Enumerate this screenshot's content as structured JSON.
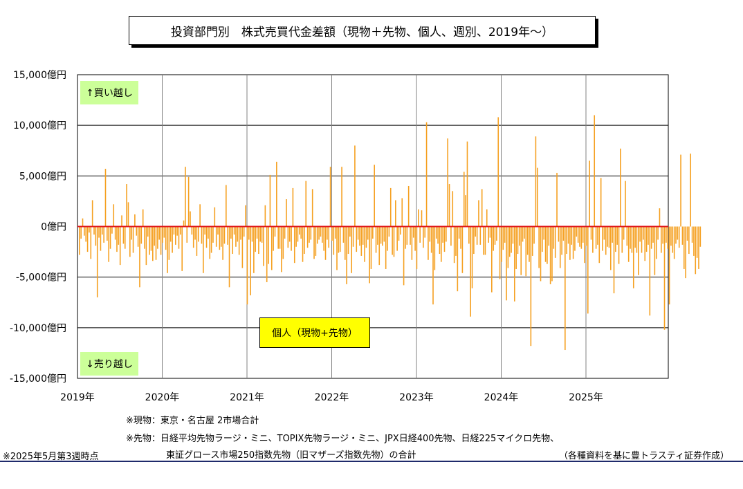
{
  "title": "投資部門別　株式売買代金差額（現物＋先物、個人、週別、2019年～）",
  "notes": {
    "genbutsu": "※現物：東京・名古屋 2市場合計",
    "sakimono1": "※先物：日経平均先物ラージ・ミニ、TOPIX先物ラージ・ミニ、JPX日経400先物、日経225マイクロ先物、",
    "sakimono2": "東証グロース市場250指数先物（旧マザーズ指数先物）の合計",
    "asof": "※2025年5月第3週時点",
    "source": "（各種資料を基に豊トラスティ証券作成）"
  },
  "colors": {
    "bar": "#f5a020",
    "zero_line": "#e0181b",
    "grid": "#000000",
    "callout_green": "#ccff99",
    "legend_bg": "#ffff00"
  },
  "chart_data": {
    "type": "bar",
    "title": "投資部門別　株式売買代金差額（現物＋先物、個人、週別、2019年～）",
    "y_unit": "億円",
    "ylim": [
      -15000,
      15000
    ],
    "y_ticks": [
      15000,
      10000,
      5000,
      0,
      -5000,
      -10000,
      -15000
    ],
    "y_tick_labels": [
      "15,000億円",
      "10,000億円",
      "5,000億円",
      "0億円",
      "-5,000億円",
      "-10,000億円",
      "-15,000億円"
    ],
    "x_tick_labels": [
      "2019年",
      "2020年",
      "2021年",
      "2022年",
      "2023年",
      "2024年",
      "2025年"
    ],
    "x_range_years": [
      2019,
      2026
    ],
    "grid": true,
    "annotations": {
      "buy": "↑買い越し",
      "sell": "↓売り越し"
    },
    "series": [
      {
        "name": "個人（現物+先物）",
        "start": "2019-01 week1",
        "frequency": "weekly",
        "values": [
          -2800,
          -1200,
          800,
          -900,
          -1500,
          -2500,
          -600,
          -3200,
          2600,
          -800,
          -1900,
          -7000,
          -1100,
          -2400,
          -800,
          -1600,
          5700,
          -1400,
          -3500,
          -2200,
          -700,
          2200,
          -1300,
          -2500,
          -1800,
          -3800,
          1100,
          -1700,
          -2200,
          4200,
          2400,
          -3000,
          -1300,
          -2600,
          1200,
          -900,
          -2000,
          -6000,
          -1700,
          1700,
          -2200,
          -3800,
          -1000,
          -2800,
          -2400,
          -3400,
          -1900,
          -3300,
          -2200,
          -1300,
          -2800,
          -1600,
          -1100,
          -2300,
          -4600,
          -3300,
          -1500,
          -2600,
          -800,
          -1800,
          -900,
          -2200,
          -800,
          -4400,
          600,
          5900,
          -1600,
          4900,
          1500,
          -800,
          -2100,
          -1300,
          -2900,
          -1500,
          2200,
          -1700,
          -4600,
          -800,
          -2100,
          -1200,
          -3200,
          -2600,
          -1600,
          1900,
          -2000,
          -800,
          -2300,
          -2000,
          -3300,
          -1700,
          4100,
          -1800,
          -6000,
          -1200,
          -2700,
          -800,
          -2000,
          -1500,
          -2800,
          -1300,
          -4100,
          -1000,
          2100,
          -7700,
          -1300,
          -6800,
          -1500,
          -4600,
          -2500,
          -1200,
          -2700,
          -1500,
          -1600,
          -3900,
          2100,
          -5500,
          -3700,
          5100,
          -4300,
          -2400,
          -1000,
          6400,
          -2200,
          -2200,
          -4500,
          -3200,
          -1200,
          2700,
          -2100,
          -1500,
          -2400,
          3800,
          -3600,
          -2000,
          -1500,
          -800,
          -1200,
          -3500,
          -2700,
          4500,
          -2100,
          -1600,
          -1300,
          3700,
          -3200,
          -2900,
          -1700,
          -1300,
          -1000,
          -1600,
          -2400,
          -3300,
          -1300,
          -2100,
          5900,
          -1400,
          -2800,
          -1200,
          -4300,
          -2600,
          -2500,
          5900,
          -1600,
          -3300,
          -5700,
          -2700,
          -1000,
          -4600,
          -2000,
          8000,
          -2500,
          -1300,
          -1900,
          -2900,
          -1800,
          -3500,
          -2100,
          -1300,
          -5600,
          -4200,
          -1200,
          6100,
          -2600,
          -1800,
          -3800,
          -1700,
          -1900,
          -1500,
          -4200,
          -2400,
          -1000,
          3800,
          -2800,
          -3000,
          2600,
          -2400,
          -1400,
          -800,
          2800,
          -5800,
          -2200,
          -1800,
          4000,
          -1800,
          -3300,
          -1100,
          -2400,
          -4200,
          1700,
          -1600,
          1600,
          -2100,
          -1100,
          10300,
          -3300,
          -1500,
          -2600,
          -7700,
          -4300,
          -1200,
          -1700,
          -2700,
          -3500,
          -1600,
          -2500,
          -1500,
          8700,
          4200,
          -1900,
          3500,
          -3600,
          -2900,
          -6400,
          -1200,
          -2200,
          -4600,
          5400,
          3100,
          8400,
          -1700,
          -8900,
          -6100,
          -2700,
          -1000,
          -1800,
          2600,
          -1800,
          3700,
          -2800,
          -2800,
          1700,
          -1600,
          -1100,
          -6500,
          -2400,
          -1800,
          -1400,
          10800,
          -5200,
          -3500,
          -2300,
          -1600,
          -7300,
          -4100,
          -3000,
          -2600,
          -1700,
          -7400,
          -4200,
          -2700,
          -1900,
          -4800,
          -1500,
          -1200,
          -4900,
          -2800,
          -3500,
          -11800,
          -2900,
          -1700,
          8900,
          5800,
          -4100,
          -5400,
          -2500,
          -1300,
          -3500,
          -3700,
          -1900,
          -5700,
          -5400,
          -2200,
          -3100,
          5300,
          -1500,
          -4100,
          -2800,
          -1400,
          -12200,
          -2700,
          -1700,
          -3300,
          -1800,
          -3200,
          -2400,
          -1000,
          -1600,
          -2000,
          -2200,
          -1600,
          -3600,
          -1900,
          -8600,
          6500,
          -1300,
          -2600,
          11000,
          -2200,
          -1800,
          -3600,
          4800,
          -2400,
          -1300,
          -2800,
          -2000,
          -2100,
          -4300,
          -1600,
          -6600,
          -2500,
          -1800,
          -3700,
          7700,
          -2600,
          -1300,
          4500,
          -1900,
          -3500,
          -2200,
          -2600,
          -6100,
          -2100,
          -2600,
          -4800,
          -1500,
          -2600,
          -1300,
          -3400,
          -2500,
          -1800,
          -8800,
          -2200,
          -1600,
          -4800,
          -3200,
          -1300,
          1800,
          -2600,
          -1700,
          -10200,
          -1600,
          -2200,
          -7700,
          -1900,
          -2600,
          -3200,
          -1700,
          -1300,
          -2100,
          7100,
          -1800,
          -4200,
          -5100,
          -1400,
          -2700,
          7200,
          -1600,
          -2900,
          -4700,
          -3100,
          -4200,
          -2000
        ]
      }
    ],
    "legend": {
      "label": "個人（現物+先物）",
      "position": "center-bottom"
    }
  }
}
